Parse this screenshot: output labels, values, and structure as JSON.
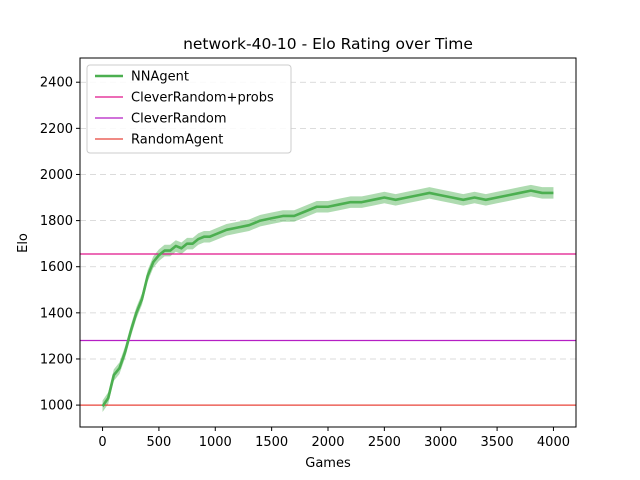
{
  "chart_data": {
    "type": "line",
    "title": "network-40-10 - Elo Rating over Time",
    "xlabel": "Games",
    "ylabel": "Elo",
    "xlim": [
      -200,
      4200
    ],
    "ylim": [
      905,
      2505
    ],
    "xticks": [
      0,
      500,
      1000,
      1500,
      2000,
      2500,
      3000,
      3500,
      4000
    ],
    "yticks": [
      1000,
      1200,
      1400,
      1600,
      1800,
      2000,
      2200,
      2400
    ],
    "grid": "y-dashed",
    "legend_position": "top-left",
    "series": [
      {
        "name": "NNAgent",
        "color": "#4caf50",
        "x": [
          0,
          50,
          100,
          150,
          200,
          250,
          300,
          350,
          400,
          450,
          500,
          550,
          600,
          650,
          700,
          750,
          800,
          850,
          900,
          950,
          1000,
          1100,
          1200,
          1300,
          1400,
          1500,
          1600,
          1700,
          1800,
          1900,
          2000,
          2100,
          2200,
          2300,
          2400,
          2500,
          2600,
          2700,
          2800,
          2900,
          3000,
          3100,
          3200,
          3300,
          3400,
          3500,
          3600,
          3700,
          3800,
          3900,
          4000
        ],
        "y": [
          995,
          1030,
          1130,
          1160,
          1230,
          1320,
          1400,
          1460,
          1560,
          1620,
          1650,
          1670,
          1670,
          1690,
          1680,
          1700,
          1700,
          1720,
          1730,
          1730,
          1740,
          1760,
          1770,
          1780,
          1800,
          1810,
          1820,
          1820,
          1840,
          1860,
          1860,
          1870,
          1880,
          1880,
          1890,
          1900,
          1890,
          1900,
          1910,
          1920,
          1910,
          1900,
          1890,
          1900,
          1890,
          1900,
          1910,
          1920,
          1930,
          1920,
          1920
        ],
        "band": 25
      },
      {
        "name": "CleverRandom+probs",
        "color": "#e0148a",
        "type": "hline",
        "y": 1655
      },
      {
        "name": "CleverRandom",
        "color": "#b51fc4",
        "type": "hline",
        "y": 1280
      },
      {
        "name": "RandomAgent",
        "color": "#e8443a",
        "type": "hline",
        "y": 1000
      }
    ]
  }
}
